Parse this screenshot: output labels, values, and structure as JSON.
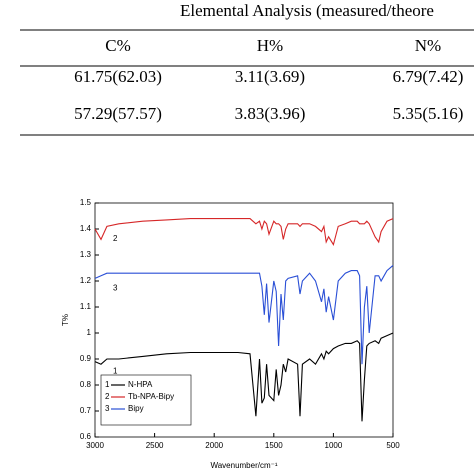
{
  "table": {
    "title": "Elemental Analysis (measured/theore",
    "header": [
      "C%",
      "H%",
      "N%"
    ],
    "rows": [
      [
        "61.75(62.03)",
        "3.11(3.69)",
        "6.79(7.42)"
      ],
      [
        "57.29(57.57)",
        "3.83(3.96)",
        "5.35(5.16)"
      ]
    ]
  },
  "chart_data": {
    "type": "line",
    "xlabel": "Wavenumber/cm⁻¹",
    "ylabel": "T%",
    "x": [
      3000,
      2950,
      2900,
      2800,
      2600,
      2400,
      2200,
      2000,
      1800,
      1700,
      1650,
      1620,
      1600,
      1580,
      1560,
      1540,
      1500,
      1480,
      1460,
      1440,
      1420,
      1400,
      1380,
      1300,
      1280,
      1260,
      1200,
      1150,
      1100,
      1080,
      1060,
      1040,
      1000,
      960,
      900,
      850,
      800,
      780,
      760,
      740,
      720,
      700,
      650,
      620,
      600,
      550,
      500
    ],
    "series": [
      {
        "name": "N-HPA",
        "marker": "1",
        "color": "#000000",
        "values": [
          0.89,
          0.88,
          0.9,
          0.9,
          0.91,
          0.92,
          0.925,
          0.925,
          0.925,
          0.92,
          0.68,
          0.9,
          0.73,
          0.75,
          0.88,
          0.76,
          0.74,
          0.86,
          0.76,
          0.8,
          0.88,
          0.85,
          0.9,
          0.88,
          0.68,
          0.88,
          0.9,
          0.88,
          0.92,
          0.9,
          0.93,
          0.92,
          0.94,
          0.95,
          0.96,
          0.96,
          0.97,
          0.96,
          0.66,
          0.82,
          0.95,
          0.96,
          0.97,
          0.96,
          0.98,
          0.99,
          1.0
        ]
      },
      {
        "name": "Tb-NPA-Bipy",
        "marker": "2",
        "color": "#d62728",
        "values": [
          1.4,
          1.36,
          1.41,
          1.42,
          1.43,
          1.435,
          1.44,
          1.44,
          1.44,
          1.44,
          1.42,
          1.43,
          1.4,
          1.43,
          1.42,
          1.38,
          1.43,
          1.42,
          1.42,
          1.41,
          1.36,
          1.4,
          1.42,
          1.42,
          1.41,
          1.42,
          1.42,
          1.41,
          1.39,
          1.41,
          1.35,
          1.37,
          1.34,
          1.41,
          1.42,
          1.43,
          1.43,
          1.42,
          1.42,
          1.42,
          1.43,
          1.42,
          1.37,
          1.35,
          1.39,
          1.43,
          1.44
        ]
      },
      {
        "name": "Bipy",
        "marker": "3",
        "color": "#2a4fd6",
        "values": [
          1.21,
          1.22,
          1.23,
          1.23,
          1.23,
          1.23,
          1.23,
          1.23,
          1.23,
          1.23,
          1.23,
          1.23,
          1.18,
          1.07,
          1.19,
          1.04,
          1.2,
          1.16,
          0.95,
          1.15,
          1.05,
          1.2,
          1.21,
          1.22,
          1.15,
          1.2,
          1.23,
          1.2,
          1.12,
          1.17,
          1.08,
          1.14,
          1.05,
          1.2,
          1.23,
          1.24,
          1.24,
          1.22,
          0.88,
          1.1,
          1.18,
          1.0,
          1.22,
          1.22,
          1.2,
          1.24,
          1.26
        ]
      }
    ],
    "xlim": [
      3000,
      500
    ],
    "ylim": [
      0.6,
      1.5
    ],
    "xticks": [
      3000,
      2500,
      2000,
      1500,
      1000,
      500
    ],
    "yticks": [
      0.6,
      0.7,
      0.8,
      0.9,
      1.0,
      1.1,
      1.2,
      1.3,
      1.4,
      1.5
    ],
    "legend": "lower left"
  }
}
